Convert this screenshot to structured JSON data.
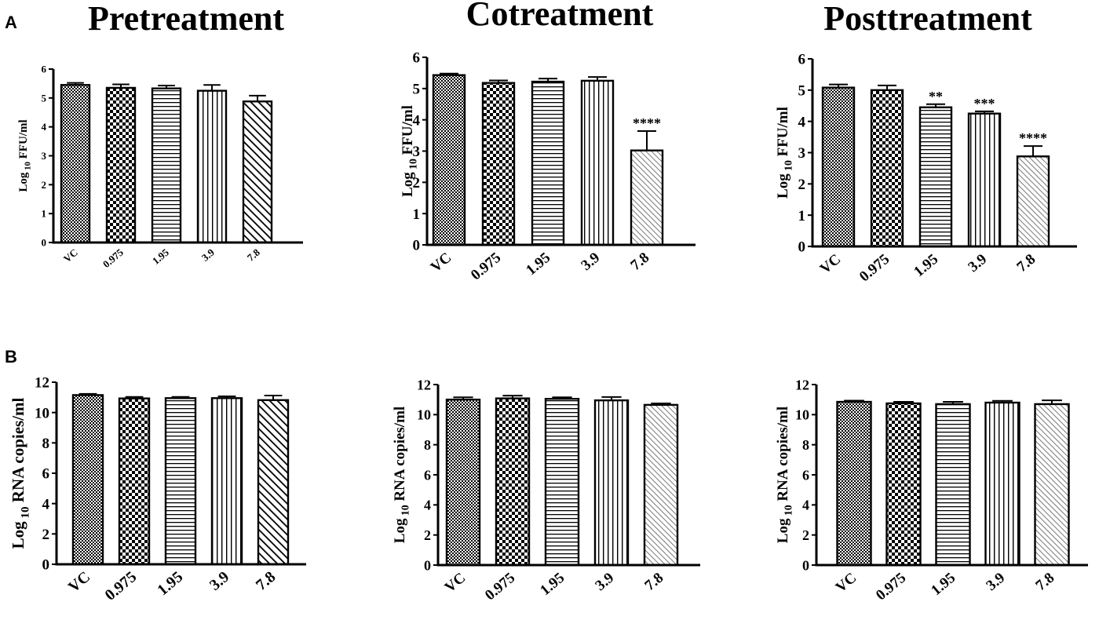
{
  "figure": {
    "panel_letters": [
      "A",
      "B"
    ],
    "column_titles": [
      "Pretreatment",
      "Cotreatment",
      "Posttreatment"
    ]
  },
  "colors": {
    "ink": "#000000",
    "bar_fill": "#ffffff"
  },
  "chart_data": [
    {
      "type": "bar",
      "panel": "A",
      "title": "Pretreatment",
      "ylabel_main": "Log",
      "ylabel_sub": "10",
      "ylabel_rest": "FFU/ml",
      "categories": [
        "VC",
        "0.975",
        "1.95",
        "3.9",
        "7.8"
      ],
      "values": [
        5.45,
        5.35,
        5.33,
        5.25,
        4.88
      ],
      "errors": [
        0.07,
        0.12,
        0.1,
        0.2,
        0.2
      ],
      "significance": [
        "",
        "",
        "",
        "",
        ""
      ],
      "patterns": [
        "dots",
        "checker",
        "hlines",
        "vlines",
        "diag"
      ],
      "ylim": [
        0,
        6
      ],
      "yticks": [
        "0",
        "1",
        "2",
        "3",
        "4",
        "5",
        "6"
      ]
    },
    {
      "type": "bar",
      "panel": "A",
      "title": "Cotreatment",
      "ylabel_main": "Log",
      "ylabel_sub": "10",
      "ylabel_rest": "FFU/ml",
      "categories": [
        "VC",
        "0.975",
        "1.95",
        "3.9",
        "7.8"
      ],
      "values": [
        5.43,
        5.18,
        5.22,
        5.25,
        3.02
      ],
      "errors": [
        0.05,
        0.08,
        0.1,
        0.12,
        0.62
      ],
      "significance": [
        "",
        "",
        "",
        "",
        "****"
      ],
      "patterns": [
        "dots",
        "checker",
        "hlines",
        "vlines",
        "diag-light"
      ],
      "ylim": [
        0,
        6
      ],
      "yticks": [
        "0",
        "1",
        "2",
        "3",
        "4",
        "5",
        "6"
      ]
    },
    {
      "type": "bar",
      "panel": "A",
      "title": "Posttreatment",
      "ylabel_main": "Log",
      "ylabel_sub": "10",
      "ylabel_rest": "FFU/ml",
      "categories": [
        "VC",
        "0.975",
        "1.95",
        "3.9",
        "7.8"
      ],
      "values": [
        5.08,
        5.0,
        4.45,
        4.25,
        2.88
      ],
      "errors": [
        0.1,
        0.15,
        0.1,
        0.07,
        0.33
      ],
      "significance": [
        "",
        "",
        "**",
        "***",
        "****"
      ],
      "patterns": [
        "dots",
        "checker",
        "hlines",
        "vlines",
        "diag-light"
      ],
      "ylim": [
        0,
        6
      ],
      "yticks": [
        "0",
        "1",
        "2",
        "3",
        "4",
        "5",
        "6"
      ]
    },
    {
      "type": "bar",
      "panel": "B",
      "title": "",
      "ylabel_main": "Log",
      "ylabel_sub": "10",
      "ylabel_rest": "RNA copies/ml",
      "categories": [
        "VC",
        "0.975",
        "1.95",
        "3.9",
        "7.8"
      ],
      "values": [
        11.15,
        10.93,
        10.95,
        10.95,
        10.82
      ],
      "errors": [
        0.08,
        0.1,
        0.08,
        0.12,
        0.3
      ],
      "significance": [
        "",
        "",
        "",
        "",
        ""
      ],
      "patterns": [
        "dots",
        "checker",
        "hlines",
        "vlines",
        "diag"
      ],
      "ylim": [
        0,
        12
      ],
      "yticks": [
        "0",
        "2",
        "4",
        "6",
        "8",
        "10",
        "12"
      ]
    },
    {
      "type": "bar",
      "panel": "B",
      "title": "",
      "ylabel_main": "Log",
      "ylabel_sub": "10",
      "ylabel_rest": "RNA copies/ml",
      "categories": [
        "VC",
        "0.975",
        "1.95",
        "3.9",
        "7.8"
      ],
      "values": [
        11.0,
        11.08,
        11.05,
        10.95,
        10.65
      ],
      "errors": [
        0.15,
        0.18,
        0.1,
        0.22,
        0.1
      ],
      "significance": [
        "",
        "",
        "",
        "",
        ""
      ],
      "patterns": [
        "dots",
        "checker",
        "hlines",
        "vlines",
        "diag-light"
      ],
      "ylim": [
        0,
        12
      ],
      "yticks": [
        "0",
        "2",
        "4",
        "6",
        "8",
        "10",
        "12"
      ]
    },
    {
      "type": "bar",
      "panel": "B",
      "title": "",
      "ylabel_main": "Log",
      "ylabel_sub": "10",
      "ylabel_rest": "RNA copies/ml",
      "categories": [
        "VC",
        "0.975",
        "1.95",
        "3.9",
        "7.8"
      ],
      "values": [
        10.85,
        10.75,
        10.7,
        10.8,
        10.7
      ],
      "errors": [
        0.08,
        0.1,
        0.15,
        0.12,
        0.25
      ],
      "significance": [
        "",
        "",
        "",
        "",
        ""
      ],
      "patterns": [
        "dots",
        "checker",
        "hlines",
        "vlines",
        "diag-light"
      ],
      "ylim": [
        0,
        12
      ],
      "yticks": [
        "0",
        "2",
        "4",
        "6",
        "8",
        "10",
        "12"
      ]
    }
  ]
}
